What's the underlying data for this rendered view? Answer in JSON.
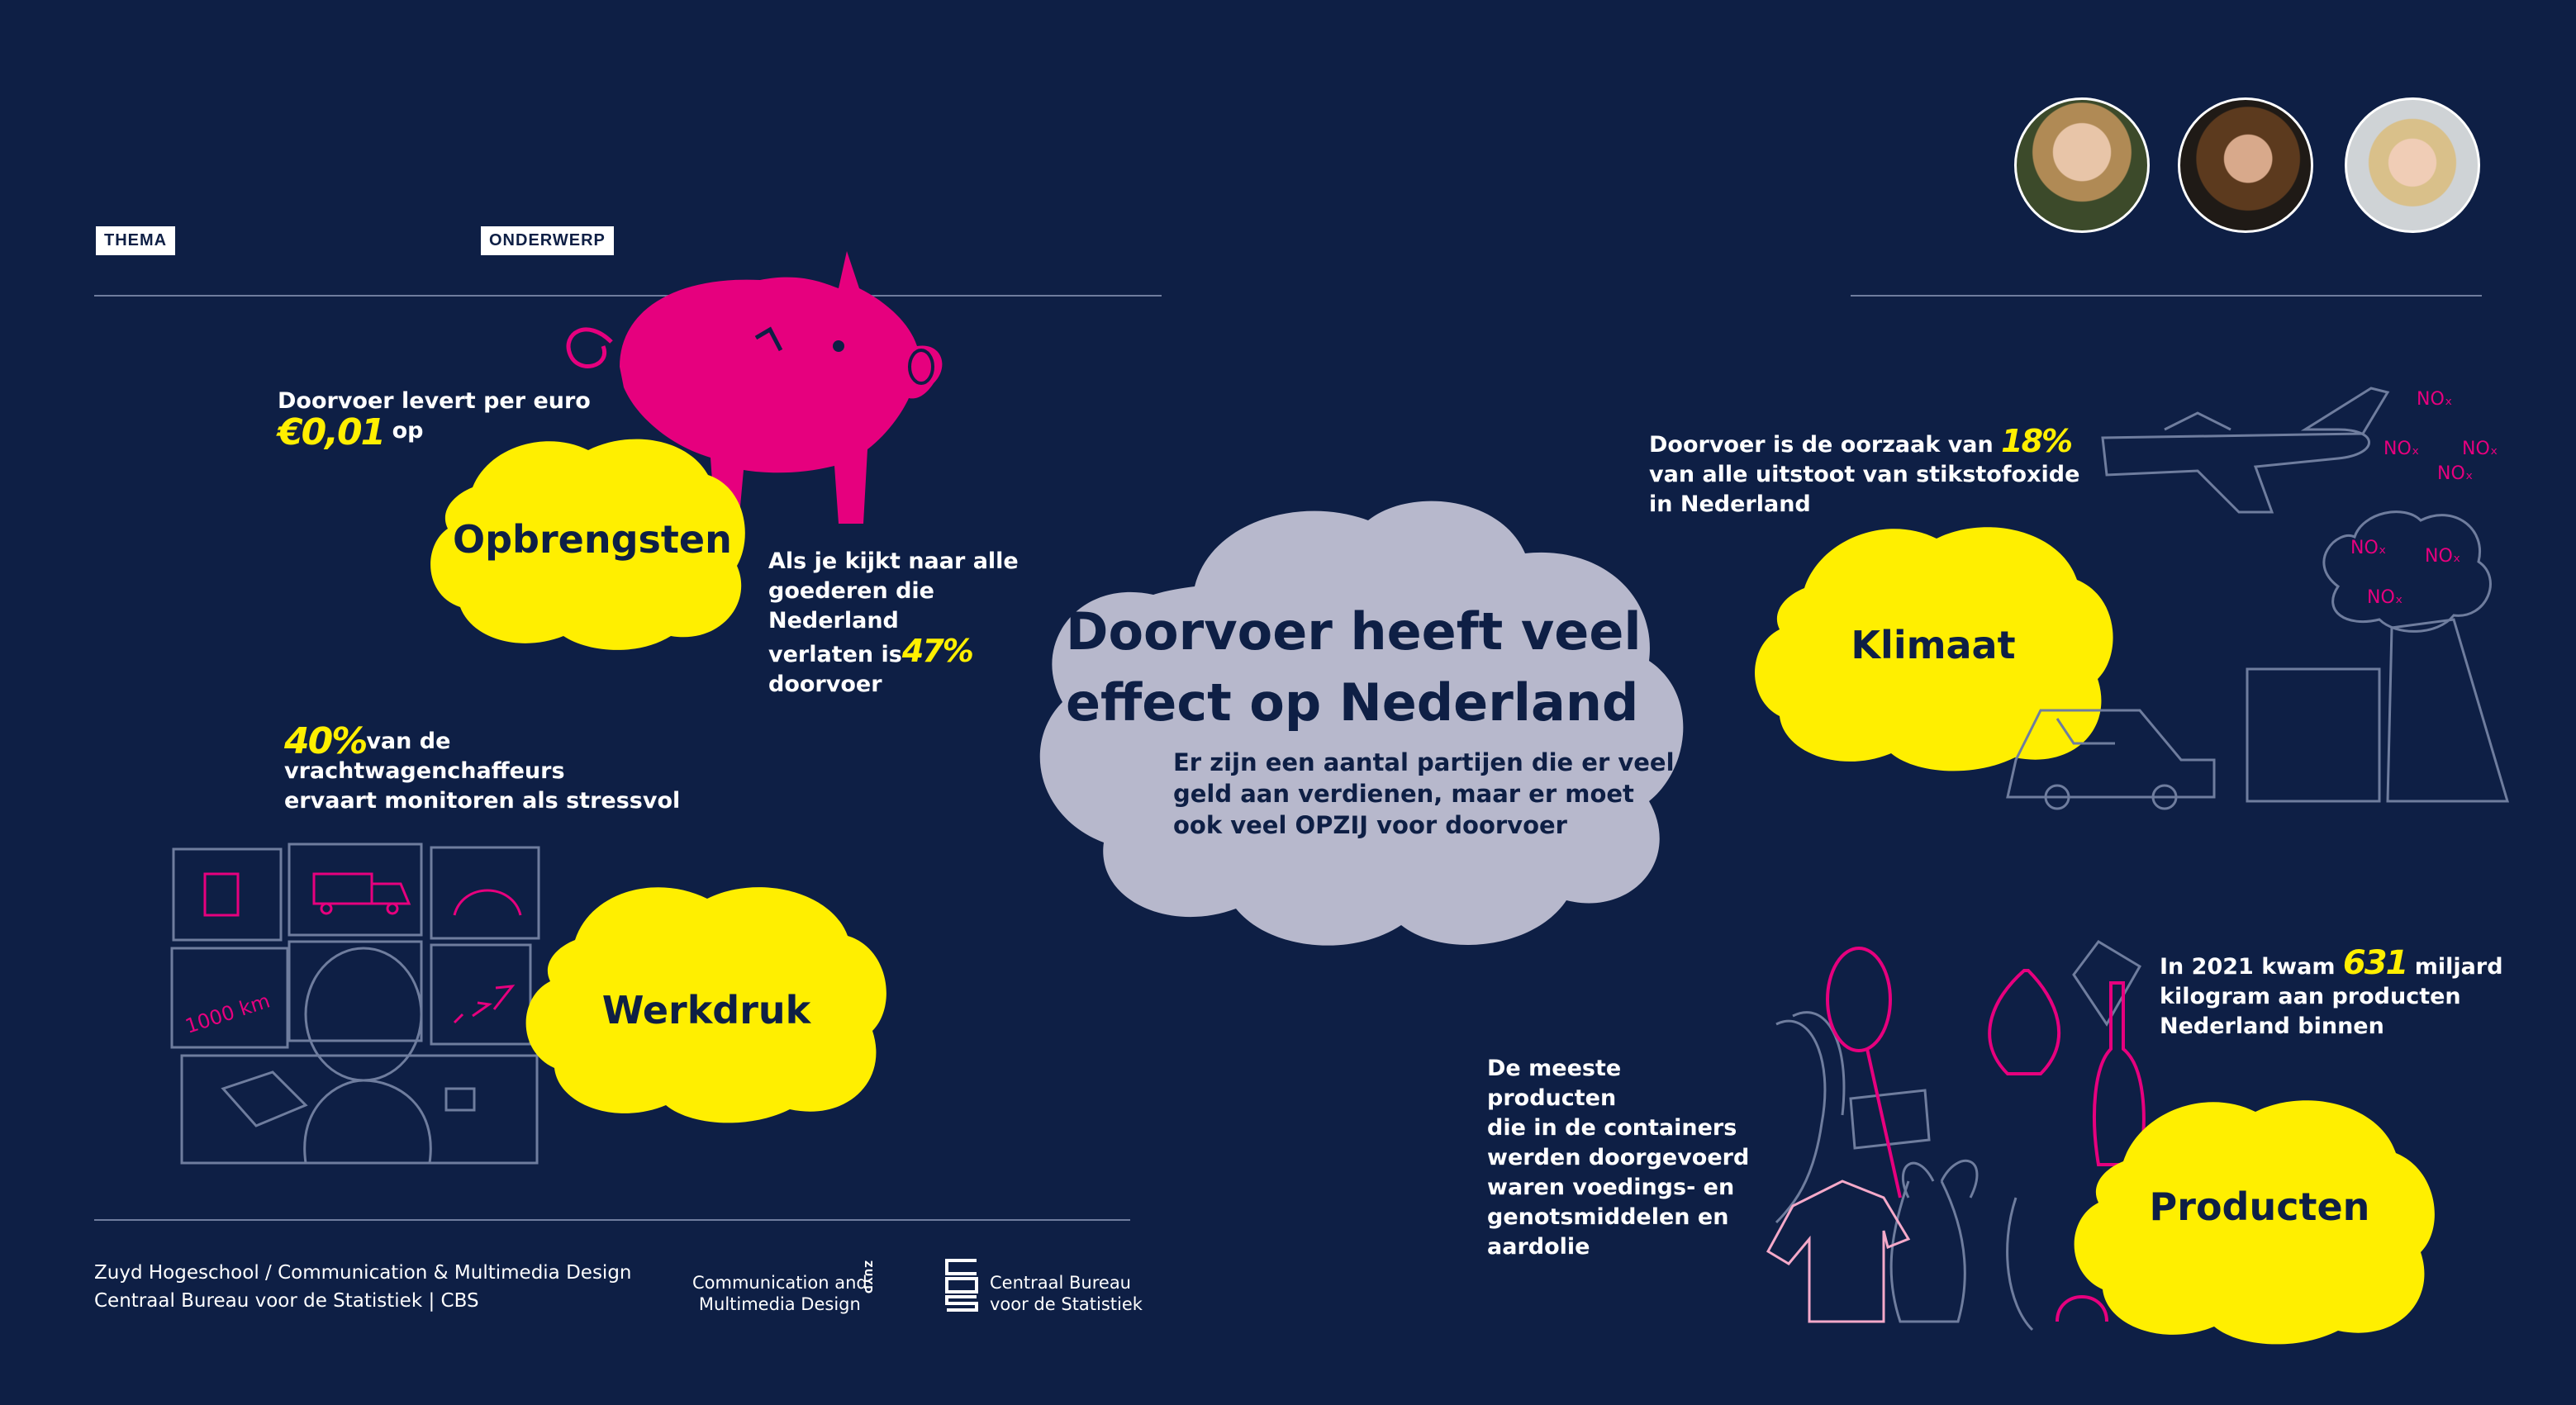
{
  "header": {
    "thema_label": "THEMA",
    "onderwerp_label": "ONDERWERP"
  },
  "center": {
    "title_line1": "Doorvoer heeft veel",
    "title_line2": "effect op Nederland",
    "body_line1": "Er zijn een aantal partijen die er veel",
    "body_line2": "geld aan verdienen, maar er moet",
    "body_line3": "ook veel OPZIJ voor doorvoer"
  },
  "opbrengsten": {
    "label": "Opbrengsten",
    "fact1_line1": "Doorvoer levert per euro",
    "fact1_value": "€0,01",
    "fact1_suffix": "op",
    "fact2_line1": "Als je kijkt naar alle",
    "fact2_line2": "goederen die Nederland",
    "fact2_line3_prefix": "verlaten is",
    "fact2_value": "47%",
    "fact2_line4": "doorvoer"
  },
  "werkdruk": {
    "label": "Werkdruk",
    "fact_value": "40%",
    "fact_line1": "van de",
    "fact_line2": "vrachtwagenchaffeurs",
    "fact_line3": "ervaart monitoren als stressvol",
    "monitor_text": "1000 km"
  },
  "klimaat": {
    "label": "Klimaat",
    "fact_line1_prefix": "Doorvoer is de oorzaak van",
    "fact_value": "18%",
    "fact_line2": "van alle uitstoot van stikstofoxide",
    "fact_line3": "in Nederland",
    "nox": "NOₓ"
  },
  "producten": {
    "label": "Producten",
    "fact1_prefix": "In 2021 kwam",
    "fact1_value": "631",
    "fact1_suffix": "miljard",
    "fact1_line2": "kilogram aan producten",
    "fact1_line3": "Nederland binnen",
    "fact2_line1": "De meeste producten",
    "fact2_line2": "die in de containers",
    "fact2_line3": "werden doorgevoerd",
    "fact2_line4": "waren voedings- en",
    "fact2_line5": "genotsmiddelen en",
    "fact2_line6": "aardolie"
  },
  "footer": {
    "line1": "Zuyd Hogeschool / Communication & Multimedia Design",
    "line2": "Centraal Bureau voor de Statistiek | CBS",
    "cmd_line1": "Communication and",
    "cmd_line2": "Multimedia Design",
    "zuyd": "ZUYD",
    "cbs_line1": "Centraal Bureau",
    "cbs_line2": "voor de Statistiek"
  },
  "colors": {
    "background": "#0e1f45",
    "yellow": "#ffef00",
    "pink": "#e6007e",
    "cloud_grey": "#b7b8cc",
    "line": "#6f7d9e"
  }
}
